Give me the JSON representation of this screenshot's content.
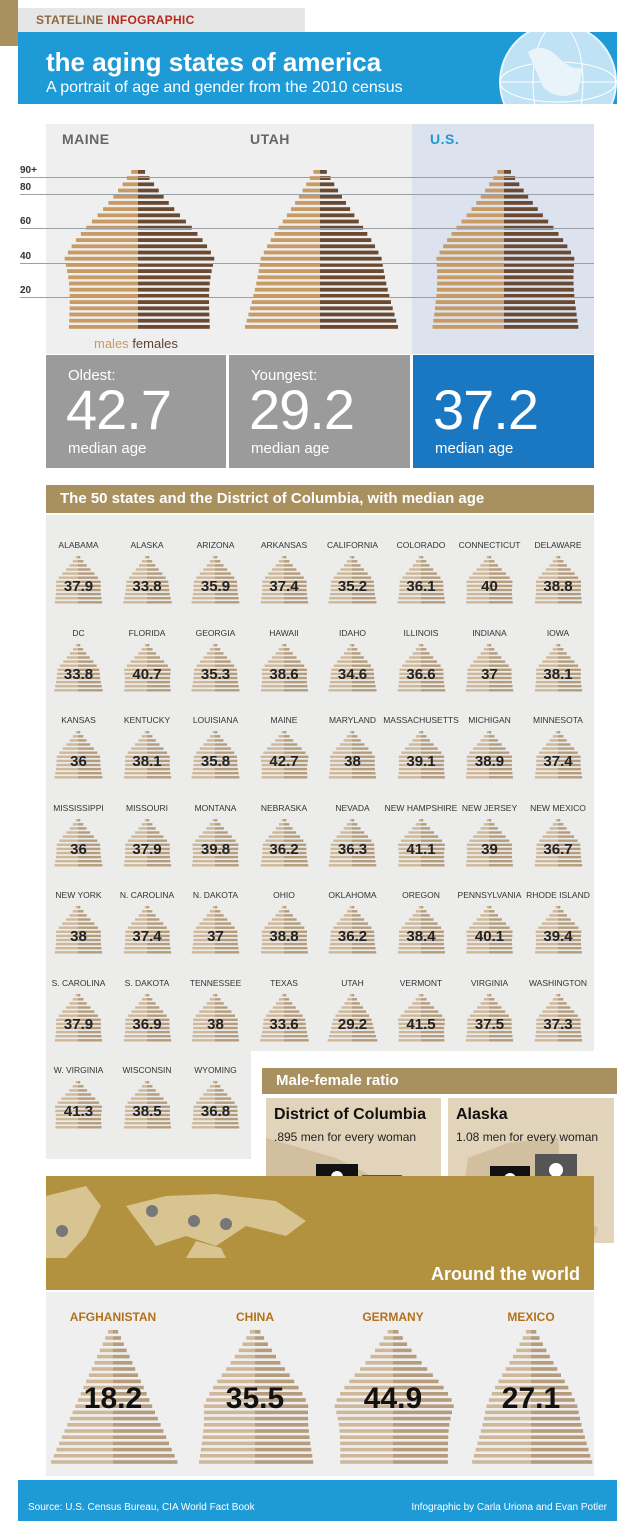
{
  "header": {
    "tagline_prefix": "STATELINE",
    "tagline_suffix": "INFOGRAPHIC",
    "title": "the aging states of america",
    "subtitle": "A portrait of age and gender from the 2010 census"
  },
  "comparison": {
    "age_labels": [
      "90+",
      "80",
      "60",
      "40",
      "20"
    ],
    "legend": {
      "males": "males",
      "females": "females"
    },
    "columns": [
      {
        "name": "MAINE",
        "label": "Oldest:",
        "value": "42.7",
        "unit": "median age",
        "color": "#9b9b9b"
      },
      {
        "name": "UTAH",
        "label": "Youngest:",
        "value": "29.2",
        "unit": "median age",
        "color": "#9b9b9b"
      },
      {
        "name": "U.S.",
        "label": "",
        "value": "37.2",
        "unit": "median age",
        "color": "#1a78c2"
      }
    ]
  },
  "states_section": {
    "heading": "The 50 states and the District of Columbia, with median age",
    "states": [
      {
        "name": "ALABAMA",
        "age": "37.9"
      },
      {
        "name": "ALASKA",
        "age": "33.8"
      },
      {
        "name": "ARIZONA",
        "age": "35.9"
      },
      {
        "name": "ARKANSAS",
        "age": "37.4"
      },
      {
        "name": "CALIFORNIA",
        "age": "35.2"
      },
      {
        "name": "COLORADO",
        "age": "36.1"
      },
      {
        "name": "CONNECTICUT",
        "age": "40"
      },
      {
        "name": "DELAWARE",
        "age": "38.8"
      },
      {
        "name": "DC",
        "age": "33.8"
      },
      {
        "name": "FLORIDA",
        "age": "40.7"
      },
      {
        "name": "GEORGIA",
        "age": "35.3"
      },
      {
        "name": "HAWAII",
        "age": "38.6"
      },
      {
        "name": "IDAHO",
        "age": "34.6"
      },
      {
        "name": "ILLINOIS",
        "age": "36.6"
      },
      {
        "name": "INDIANA",
        "age": "37"
      },
      {
        "name": "IOWA",
        "age": "38.1"
      },
      {
        "name": "KANSAS",
        "age": "36"
      },
      {
        "name": "KENTUCKY",
        "age": "38.1"
      },
      {
        "name": "LOUISIANA",
        "age": "35.8"
      },
      {
        "name": "MAINE",
        "age": "42.7"
      },
      {
        "name": "MARYLAND",
        "age": "38"
      },
      {
        "name": "MASSACHUSETTS",
        "age": "39.1"
      },
      {
        "name": "MICHIGAN",
        "age": "38.9"
      },
      {
        "name": "MINNESOTA",
        "age": "37.4"
      },
      {
        "name": "MISSISSIPPI",
        "age": "36"
      },
      {
        "name": "MISSOURI",
        "age": "37.9"
      },
      {
        "name": "MONTANA",
        "age": "39.8"
      },
      {
        "name": "NEBRASKA",
        "age": "36.2"
      },
      {
        "name": "NEVADA",
        "age": "36.3"
      },
      {
        "name": "NEW HAMPSHIRE",
        "age": "41.1"
      },
      {
        "name": "NEW JERSEY",
        "age": "39"
      },
      {
        "name": "NEW MEXICO",
        "age": "36.7"
      },
      {
        "name": "NEW YORK",
        "age": "38"
      },
      {
        "name": "N. CAROLINA",
        "age": "37.4"
      },
      {
        "name": "N. DAKOTA",
        "age": "37"
      },
      {
        "name": "OHIO",
        "age": "38.8"
      },
      {
        "name": "OKLAHOMA",
        "age": "36.2"
      },
      {
        "name": "OREGON",
        "age": "38.4"
      },
      {
        "name": "PENNSYLVANIA",
        "age": "40.1"
      },
      {
        "name": "RHODE ISLAND",
        "age": "39.4"
      },
      {
        "name": "S. CAROLINA",
        "age": "37.9"
      },
      {
        "name": "S. DAKOTA",
        "age": "36.9"
      },
      {
        "name": "TENNESSEE",
        "age": "38"
      },
      {
        "name": "TEXAS",
        "age": "33.6"
      },
      {
        "name": "UTAH",
        "age": "29.2"
      },
      {
        "name": "VERMONT",
        "age": "41.5"
      },
      {
        "name": "VIRGINIA",
        "age": "37.5"
      },
      {
        "name": "WASHINGTON",
        "age": "37.3"
      },
      {
        "name": "W. VIRGINIA",
        "age": "41.3"
      },
      {
        "name": "WISCONSIN",
        "age": "38.5"
      },
      {
        "name": "WYOMING",
        "age": "36.8"
      }
    ]
  },
  "ratio_section": {
    "heading": "Male-female ratio",
    "entries": [
      {
        "title": "District of Columbia",
        "desc": ".895 men for every woman",
        "men_per_woman": 0.895
      },
      {
        "title": "Alaska",
        "desc": "1.08 men for every woman",
        "men_per_woman": 1.08
      }
    ]
  },
  "world_section": {
    "heading": "Around the world",
    "countries": [
      {
        "name": "AFGHANISTAN",
        "age": "18.2"
      },
      {
        "name": "CHINA",
        "age": "35.5"
      },
      {
        "name": "GERMANY",
        "age": "44.9"
      },
      {
        "name": "MEXICO",
        "age": "27.1"
      }
    ]
  },
  "footer": {
    "source": "Source: U.S. Census Bureau, CIA World Fact Book",
    "credit": "Infographic by Carla Uriona and Evan Potler"
  },
  "colors": {
    "male": "#c89a64",
    "female": "#6b4a33",
    "tan": "#a8905f",
    "blue": "#1e9ad6"
  }
}
